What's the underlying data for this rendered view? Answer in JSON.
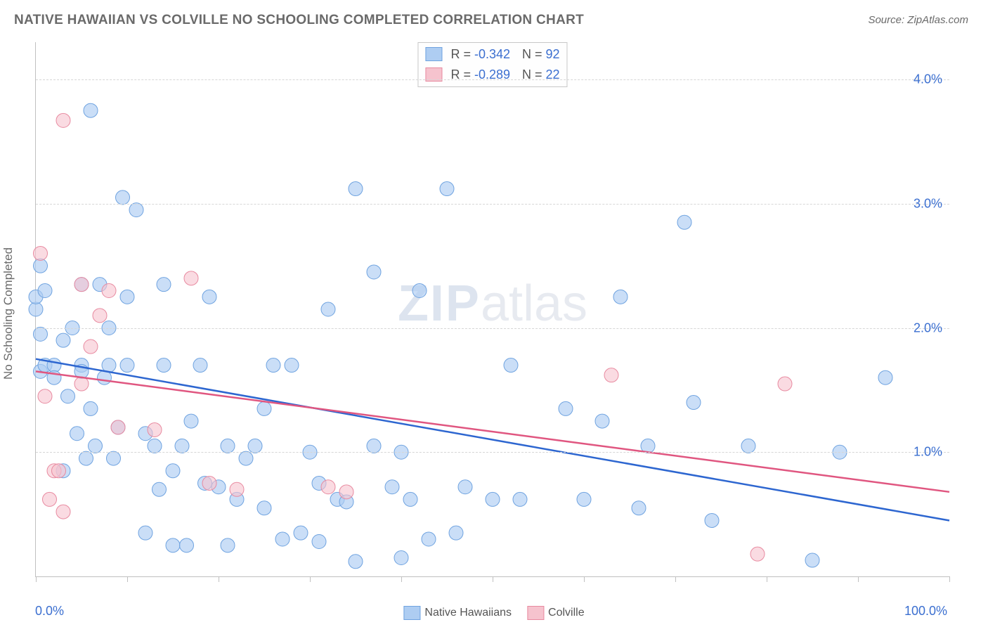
{
  "title": "NATIVE HAWAIIAN VS COLVILLE NO SCHOOLING COMPLETED CORRELATION CHART",
  "source": "Source: ZipAtlas.com",
  "watermark_zip": "ZIP",
  "watermark_atlas": "atlas",
  "chart": {
    "type": "scatter",
    "y_axis_title": "No Schooling Completed",
    "xlim": [
      0,
      100
    ],
    "ylim": [
      0,
      4.3
    ],
    "x_ticks": [
      0,
      10,
      20,
      30,
      40,
      50,
      60,
      70,
      80,
      90,
      100
    ],
    "x_labels_shown": [
      {
        "v": 0,
        "t": "0.0%"
      },
      {
        "v": 100,
        "t": "100.0%"
      }
    ],
    "y_gridlines": [
      1.0,
      2.0,
      3.0,
      4.0
    ],
    "y_labels": [
      {
        "v": 1.0,
        "t": "1.0%"
      },
      {
        "v": 2.0,
        "t": "2.0%"
      },
      {
        "v": 3.0,
        "t": "3.0%"
      },
      {
        "v": 4.0,
        "t": "4.0%"
      }
    ],
    "background_color": "#ffffff",
    "grid_color": "#d6d6d6",
    "axis_color": "#c0c0c0",
    "text_color": "#6a6a6a",
    "label_value_color": "#3b6fd0",
    "title_fontsize": 19,
    "tick_fontsize": 18,
    "marker_radius": 10,
    "marker_stroke_width": 1,
    "trend_line_width": 2.5,
    "series": [
      {
        "name": "Native Hawaiians",
        "fill_color": "#aecdf2",
        "stroke_color": "#6fa3e0",
        "fill_opacity": 0.65,
        "line_color": "#2d66d0",
        "R": "-0.342",
        "N": "92",
        "trend": {
          "x0": 0,
          "y0": 1.75,
          "x1": 100,
          "y1": 0.45
        },
        "points": [
          [
            0,
            2.15
          ],
          [
            0,
            2.25
          ],
          [
            0.5,
            2.5
          ],
          [
            0.5,
            1.65
          ],
          [
            0.5,
            1.95
          ],
          [
            1,
            1.7
          ],
          [
            1,
            2.3
          ],
          [
            2,
            1.7
          ],
          [
            2,
            1.6
          ],
          [
            3,
            1.9
          ],
          [
            3,
            0.85
          ],
          [
            3.5,
            1.45
          ],
          [
            4,
            2.0
          ],
          [
            4.5,
            1.15
          ],
          [
            5,
            1.7
          ],
          [
            5,
            1.65
          ],
          [
            5,
            2.35
          ],
          [
            5.5,
            0.95
          ],
          [
            6,
            3.75
          ],
          [
            6,
            1.35
          ],
          [
            6.5,
            1.05
          ],
          [
            7,
            2.35
          ],
          [
            7.5,
            1.6
          ],
          [
            8,
            1.7
          ],
          [
            8,
            2.0
          ],
          [
            8.5,
            0.95
          ],
          [
            9,
            1.2
          ],
          [
            9.5,
            3.05
          ],
          [
            10,
            2.25
          ],
          [
            10,
            1.7
          ],
          [
            11,
            2.95
          ],
          [
            12,
            1.15
          ],
          [
            12,
            0.35
          ],
          [
            13,
            1.05
          ],
          [
            13.5,
            0.7
          ],
          [
            14,
            1.7
          ],
          [
            14,
            2.35
          ],
          [
            15,
            0.25
          ],
          [
            15,
            0.85
          ],
          [
            16,
            1.05
          ],
          [
            16.5,
            0.25
          ],
          [
            17,
            1.25
          ],
          [
            18,
            1.7
          ],
          [
            18.5,
            0.75
          ],
          [
            19,
            2.25
          ],
          [
            20,
            0.72
          ],
          [
            21,
            1.05
          ],
          [
            21,
            0.25
          ],
          [
            22,
            0.62
          ],
          [
            23,
            0.95
          ],
          [
            24,
            1.05
          ],
          [
            25,
            1.35
          ],
          [
            25,
            0.55
          ],
          [
            26,
            1.7
          ],
          [
            27,
            0.3
          ],
          [
            28,
            1.7
          ],
          [
            29,
            0.35
          ],
          [
            30,
            1.0
          ],
          [
            31,
            0.75
          ],
          [
            31,
            0.28
          ],
          [
            32,
            2.15
          ],
          [
            33,
            0.62
          ],
          [
            34,
            0.6
          ],
          [
            35,
            0.12
          ],
          [
            35,
            3.12
          ],
          [
            37,
            1.05
          ],
          [
            37,
            2.45
          ],
          [
            39,
            0.72
          ],
          [
            40,
            1.0
          ],
          [
            40,
            0.15
          ],
          [
            41,
            0.62
          ],
          [
            42,
            2.3
          ],
          [
            43,
            0.3
          ],
          [
            45,
            3.12
          ],
          [
            46,
            0.35
          ],
          [
            47,
            0.72
          ],
          [
            50,
            0.62
          ],
          [
            52,
            1.7
          ],
          [
            53,
            0.62
          ],
          [
            58,
            1.35
          ],
          [
            60,
            0.62
          ],
          [
            62,
            1.25
          ],
          [
            64,
            2.25
          ],
          [
            66,
            0.55
          ],
          [
            67,
            1.05
          ],
          [
            71,
            2.85
          ],
          [
            72,
            1.4
          ],
          [
            74,
            0.45
          ],
          [
            78,
            1.05
          ],
          [
            85,
            0.13
          ],
          [
            88,
            1.0
          ],
          [
            93,
            1.6
          ]
        ]
      },
      {
        "name": "Colville",
        "fill_color": "#f6c3ce",
        "stroke_color": "#e88aa0",
        "fill_opacity": 0.6,
        "line_color": "#e05680",
        "R": "-0.289",
        "N": "22",
        "trend": {
          "x0": 0,
          "y0": 1.65,
          "x1": 100,
          "y1": 0.68
        },
        "points": [
          [
            0.5,
            2.6
          ],
          [
            1,
            1.45
          ],
          [
            1.5,
            0.62
          ],
          [
            2,
            0.85
          ],
          [
            2.5,
            0.85
          ],
          [
            3,
            3.67
          ],
          [
            3,
            0.52
          ],
          [
            5,
            2.35
          ],
          [
            5,
            1.55
          ],
          [
            6,
            1.85
          ],
          [
            7,
            2.1
          ],
          [
            8,
            2.3
          ],
          [
            9,
            1.2
          ],
          [
            13,
            1.18
          ],
          [
            17,
            2.4
          ],
          [
            19,
            0.75
          ],
          [
            22,
            0.7
          ],
          [
            32,
            0.72
          ],
          [
            34,
            0.68
          ],
          [
            63,
            1.62
          ],
          [
            79,
            0.18
          ],
          [
            82,
            1.55
          ]
        ]
      }
    ]
  },
  "legend_bottom_labels": [
    "Native Hawaiians",
    "Colville"
  ]
}
